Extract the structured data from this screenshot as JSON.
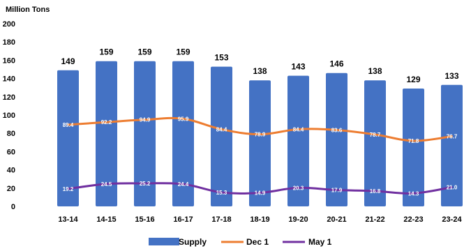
{
  "chart_data": {
    "type": "bar",
    "ylabel": "Million Tons",
    "ylim": [
      0,
      200
    ],
    "yticks": [
      0,
      20,
      40,
      60,
      80,
      100,
      120,
      140,
      160,
      180,
      200
    ],
    "categories": [
      "13-14",
      "14-15",
      "15-16",
      "16-17",
      "17-18",
      "18-19",
      "19-20",
      "20-21",
      "21-22",
      "22-23",
      "23-24"
    ],
    "series": [
      {
        "name": "Supply",
        "kind": "bar",
        "color": "#4472C4",
        "values": [
          149,
          159,
          159,
          159,
          153,
          138,
          143,
          146,
          138,
          129,
          133
        ],
        "labels": [
          "149",
          "159",
          "159",
          "159",
          "153",
          "138",
          "143",
          "146",
          "138",
          "129",
          "133"
        ]
      },
      {
        "name": "Dec 1",
        "kind": "line",
        "color": "#ED7D31",
        "values": [
          89.4,
          92.2,
          94.9,
          95.9,
          84.4,
          78.9,
          84.4,
          83.6,
          78.7,
          71.8,
          76.7
        ],
        "labels": [
          "89.4",
          "92.2",
          "94.9",
          "95.9",
          "84.4",
          "78.9",
          "84.4",
          "83.6",
          "78.7",
          "71.8",
          "76.7"
        ]
      },
      {
        "name": "May 1",
        "kind": "line",
        "color": "#7030A0",
        "values": [
          19.2,
          24.5,
          25.2,
          24.4,
          15.3,
          14.9,
          20.3,
          17.9,
          16.8,
          14.3,
          21.0
        ],
        "labels": [
          "19.2",
          "24.5",
          "25.2",
          "24.4",
          "15.3",
          "14.9",
          "20.3",
          "17.9",
          "16.8",
          "14.3",
          "21.0"
        ]
      }
    ],
    "grid": false,
    "legend": "bottom-center"
  }
}
